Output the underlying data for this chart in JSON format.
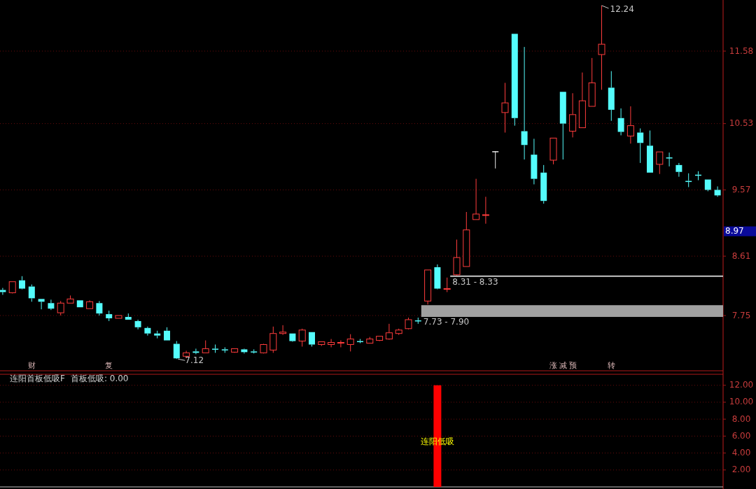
{
  "chart_data": [
    {
      "type": "candlestick",
      "categories": [
        null,
        null,
        null,
        null,
        null,
        null,
        null,
        null,
        null,
        null,
        null,
        null,
        null,
        null,
        null,
        null,
        null,
        null,
        null,
        null,
        null,
        null,
        null,
        null,
        null,
        null,
        null,
        null,
        null,
        null,
        null,
        null,
        null,
        null,
        null,
        null,
        null,
        null,
        null,
        null,
        null,
        null,
        null,
        null,
        null,
        null,
        null,
        null,
        null,
        null,
        null,
        null,
        null,
        null,
        null,
        null,
        null,
        null,
        null,
        null,
        null,
        null,
        null,
        null,
        null,
        null,
        null,
        null,
        null,
        null,
        null,
        null,
        null,
        null,
        null
      ],
      "ohlc": [
        [
          8.12,
          8.15,
          8.05,
          8.09
        ],
        [
          8.08,
          8.24,
          8.07,
          8.24
        ],
        [
          8.26,
          8.32,
          8.13,
          8.14
        ],
        [
          8.17,
          8.2,
          7.95,
          8.0
        ],
        [
          7.99,
          7.99,
          7.84,
          7.95
        ],
        [
          7.93,
          7.98,
          7.83,
          7.85
        ],
        [
          7.79,
          7.96,
          7.75,
          7.93
        ],
        [
          7.93,
          8.04,
          7.93,
          7.99
        ],
        [
          7.97,
          7.97,
          7.87,
          7.87
        ],
        [
          7.85,
          7.97,
          7.85,
          7.95
        ],
        [
          7.93,
          7.96,
          7.75,
          7.78
        ],
        [
          7.77,
          7.82,
          7.67,
          7.71
        ],
        [
          7.71,
          7.75,
          7.71,
          7.75
        ],
        [
          7.73,
          7.78,
          7.69,
          7.69
        ],
        [
          7.67,
          7.69,
          7.55,
          7.58
        ],
        [
          7.57,
          7.59,
          7.46,
          7.49
        ],
        [
          7.49,
          7.53,
          7.42,
          7.46
        ],
        [
          7.53,
          7.58,
          7.39,
          7.39
        ],
        [
          7.34,
          7.38,
          7.12,
          7.13
        ],
        [
          7.16,
          7.24,
          7.13,
          7.21
        ],
        [
          7.23,
          7.27,
          7.19,
          7.21
        ],
        [
          7.21,
          7.39,
          7.21,
          7.27
        ],
        [
          7.27,
          7.33,
          7.21,
          7.26
        ],
        [
          7.26,
          7.29,
          7.21,
          7.25
        ],
        [
          7.22,
          7.27,
          7.21,
          7.27
        ],
        [
          7.26,
          7.27,
          7.2,
          7.22
        ],
        [
          7.23,
          7.26,
          7.2,
          7.22
        ],
        [
          7.21,
          7.34,
          7.2,
          7.33
        ],
        [
          7.25,
          7.59,
          7.21,
          7.49
        ],
        [
          7.49,
          7.61,
          7.47,
          7.51
        ],
        [
          7.49,
          7.49,
          7.37,
          7.38
        ],
        [
          7.38,
          7.56,
          7.3,
          7.54
        ],
        [
          7.51,
          7.51,
          7.3,
          7.33
        ],
        [
          7.33,
          7.37,
          7.31,
          7.37
        ],
        [
          7.33,
          7.41,
          7.29,
          7.36
        ],
        [
          7.35,
          7.39,
          7.29,
          7.36
        ],
        [
          7.33,
          7.48,
          7.23,
          7.41
        ],
        [
          7.38,
          7.41,
          7.35,
          7.37
        ],
        [
          7.35,
          7.44,
          7.35,
          7.41
        ],
        [
          7.39,
          7.45,
          7.38,
          7.45
        ],
        [
          7.41,
          7.63,
          7.4,
          7.5
        ],
        [
          7.49,
          7.56,
          7.47,
          7.54
        ],
        [
          7.56,
          7.72,
          7.55,
          7.69
        ],
        [
          7.68,
          7.72,
          7.63,
          7.67
        ],
        [
          7.96,
          8.41,
          7.91,
          8.41
        ],
        [
          8.45,
          8.49,
          8.13,
          8.14
        ],
        [
          8.13,
          8.3,
          8.09,
          8.14
        ],
        [
          8.34,
          8.85,
          8.33,
          8.59
        ],
        [
          8.46,
          9.25,
          8.46,
          8.99
        ],
        [
          9.14,
          9.73,
          9.14,
          9.22
        ],
        [
          9.2,
          9.47,
          9.08,
          9.21
        ],
        [
          10.13,
          10.13,
          9.88,
          10.13
        ],
        [
          10.69,
          11.12,
          10.4,
          10.83
        ],
        [
          11.83,
          11.83,
          10.5,
          10.61
        ],
        [
          10.42,
          11.64,
          10.01,
          10.22
        ],
        [
          10.08,
          10.31,
          9.65,
          9.73
        ],
        [
          9.82,
          9.93,
          9.37,
          9.41
        ],
        [
          10.0,
          10.32,
          9.94,
          10.32
        ],
        [
          10.99,
          10.99,
          10.01,
          10.53
        ],
        [
          10.42,
          10.97,
          10.33,
          10.66
        ],
        [
          10.47,
          11.27,
          10.47,
          10.86
        ],
        [
          10.78,
          11.48,
          10.78,
          11.12
        ],
        [
          11.53,
          12.24,
          11.02,
          11.68
        ],
        [
          11.05,
          11.29,
          10.57,
          10.73
        ],
        [
          10.61,
          10.75,
          10.36,
          10.41
        ],
        [
          10.35,
          10.78,
          10.24,
          10.5
        ],
        [
          10.4,
          10.46,
          9.96,
          10.25
        ],
        [
          10.21,
          10.43,
          9.82,
          9.82
        ],
        [
          9.94,
          10.12,
          9.8,
          10.12
        ],
        [
          10.04,
          10.11,
          9.91,
          10.03
        ],
        [
          9.93,
          9.96,
          9.76,
          9.83
        ],
        [
          9.7,
          9.81,
          9.61,
          9.69
        ],
        [
          9.79,
          9.84,
          9.71,
          9.78
        ],
        [
          9.72,
          9.72,
          9.55,
          9.57
        ],
        [
          9.57,
          9.62,
          9.47,
          9.49
        ]
      ],
      "value_labels": [
        null,
        null,
        null,
        "财",
        null,
        null,
        null,
        null,
        null,
        null,
        null,
        "复",
        null,
        null,
        null,
        null,
        null,
        null,
        null,
        null,
        null,
        null,
        null,
        null,
        null,
        null,
        null,
        null,
        null,
        null,
        null,
        null,
        null,
        null,
        null,
        null,
        null,
        null,
        null,
        null,
        null,
        null,
        null,
        null,
        null,
        null,
        null,
        null,
        null,
        null,
        null,
        null,
        null,
        null,
        null,
        null,
        null,
        "涨",
        "减",
        "预",
        null,
        null,
        null,
        "转",
        null,
        null,
        null,
        null,
        null,
        null,
        null,
        null,
        null,
        null,
        null
      ],
      "ylim": [
        6.95,
        12.32
      ],
      "yticks": [
        7.75,
        8.61,
        9.57,
        10.53,
        11.58
      ],
      "grid": "y",
      "bands": [
        {
          "axis": "y",
          "from": 8.31,
          "to": 8.33,
          "label": "8.31 - 8.33",
          "color": "#c8c8c8"
        },
        {
          "axis": "y",
          "from": 7.73,
          "to": 7.9,
          "label": "7.73 - 7.90",
          "color": "#a0a0a0"
        }
      ],
      "annotations": [
        "12.24",
        "7.12",
        "8.97"
      ]
    },
    {
      "type": "bar",
      "title": "连阳首板低吸F",
      "subtitle": "首板低吸: 0.00",
      "color": "#ff0000",
      "categories": [
        null,
        null,
        null,
        null,
        null,
        null,
        null,
        null,
        null,
        null,
        null,
        null,
        null,
        null,
        null,
        null,
        null,
        null,
        null,
        null,
        null,
        null,
        null,
        null,
        null,
        null,
        null,
        null,
        null,
        null,
        null,
        null,
        null,
        null,
        null,
        null,
        null,
        null,
        null,
        null,
        null,
        null,
        null,
        null,
        null,
        null,
        null,
        null,
        null,
        null,
        null,
        null,
        null,
        null,
        null,
        null,
        null,
        null,
        null,
        null,
        null,
        null,
        null,
        null,
        null,
        null,
        null,
        null,
        null,
        null,
        null,
        null,
        null,
        null,
        null
      ],
      "values": [
        0,
        0,
        0,
        0,
        0,
        0,
        0,
        0,
        0,
        0,
        0,
        0,
        0,
        0,
        0,
        0,
        0,
        0,
        0,
        0,
        0,
        0,
        0,
        0,
        0,
        0,
        0,
        0,
        0,
        0,
        0,
        0,
        0,
        0,
        0,
        0,
        0,
        0,
        0,
        0,
        0,
        0,
        0,
        0,
        0,
        12,
        0,
        0,
        0,
        0,
        0,
        0,
        0,
        0,
        0,
        0,
        0,
        0,
        0,
        0,
        0,
        0,
        0,
        0,
        0,
        0,
        0,
        0,
        0,
        0,
        0,
        0,
        0,
        0,
        0
      ],
      "value_labels": [
        null,
        null,
        null,
        null,
        null,
        null,
        null,
        null,
        null,
        null,
        null,
        null,
        null,
        null,
        null,
        null,
        null,
        null,
        null,
        null,
        null,
        null,
        null,
        null,
        null,
        null,
        null,
        null,
        null,
        null,
        null,
        null,
        null,
        null,
        null,
        null,
        null,
        null,
        null,
        null,
        null,
        null,
        null,
        null,
        null,
        "连阳低吸",
        null,
        null,
        null,
        null,
        null,
        null,
        null,
        null,
        null,
        null,
        null,
        null,
        null,
        null,
        null,
        null,
        null,
        null,
        null,
        null,
        null,
        null,
        null,
        null,
        null,
        null,
        null,
        null,
        null
      ],
      "ylim": [
        0,
        13.3
      ],
      "yticks": [
        {
          "value": 2,
          "label": "2.00"
        },
        {
          "value": 4,
          "label": "4.00"
        },
        {
          "value": 6,
          "label": "6.00"
        },
        {
          "value": 8,
          "label": "8.00"
        },
        {
          "value": 10,
          "label": "10.00"
        },
        {
          "value": 12,
          "label": "12.00"
        }
      ],
      "grid": "y"
    }
  ]
}
